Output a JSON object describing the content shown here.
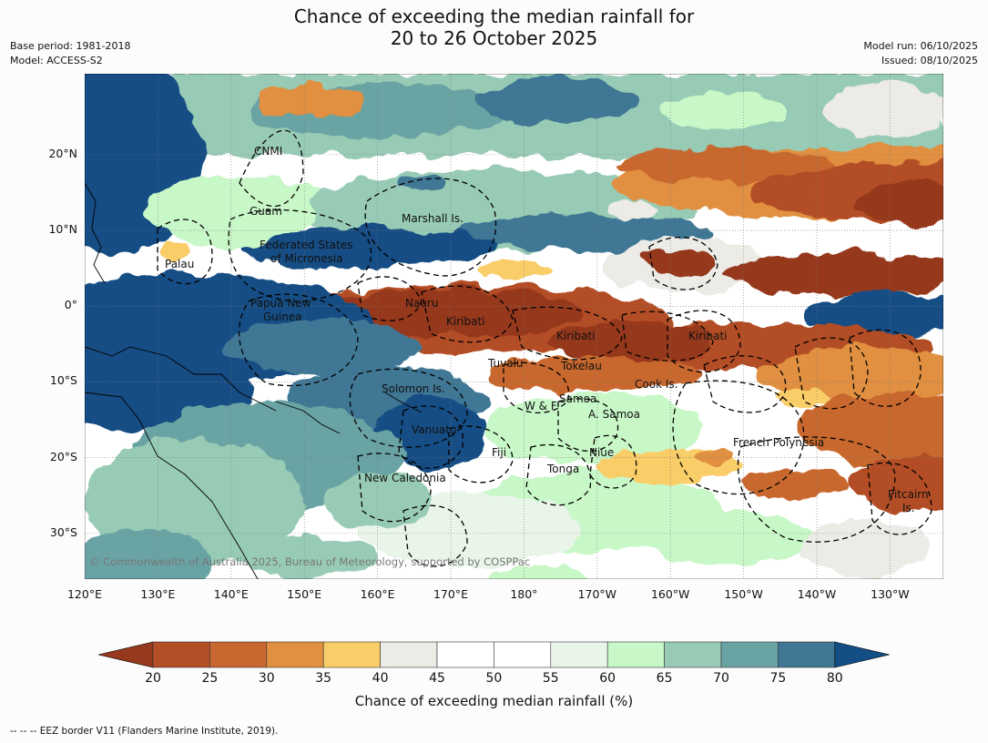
{
  "title": {
    "line1": "Chance of exceeding the median rainfall for",
    "line2": "20 to 26 October 2025"
  },
  "meta": {
    "base_period": "Base period: 1981-2018",
    "model": "Model: ACCESS-S2",
    "model_run": "Model run: 06/10/2025",
    "issued": "Issued: 08/10/2025"
  },
  "map": {
    "lon_labels": [
      "120°E",
      "130°E",
      "140°E",
      "150°E",
      "160°E",
      "170°E",
      "180°",
      "170°W",
      "160°W",
      "150°W",
      "140°W",
      "130°W"
    ],
    "lat_labels": [
      "20°N",
      "10°N",
      "0°",
      "10°S",
      "20°S",
      "30°S"
    ],
    "places": {
      "cnmi": "CNMI",
      "guam": "Guam",
      "marshall": "Marshall Is.",
      "fsm1": "Federated States",
      "fsm2": "of Micronesia",
      "palau": "Palau",
      "png1": "Papua New",
      "png2": "Guinea",
      "nauru": "Nauru",
      "kiribati_w": "Kiribati",
      "kiribati_c": "Kiribati",
      "kiribati_e": "Kiribati",
      "tuvalu": "Tuvalu",
      "tokelau": "Tokelau",
      "solomon": "Solomon Is.",
      "samoa": "Samoa",
      "wf": "W & F",
      "asamoa": "A. Samoa",
      "cook": "Cook Is.",
      "vanuatu": "Vanuatu",
      "fiji": "Fiji",
      "niue": "Niue",
      "tonga": "Tonga",
      "french_polynesia": "French Polynesia",
      "new_caledonia": "New Caledonia",
      "pitcairn1": "Pitcairn",
      "pitcairn2": "Is."
    },
    "copyright": "© Commonwealth of Australia 2025, Bureau of Meteorology, supported by COSPPac"
  },
  "colorbar": {
    "ticks": [
      "20",
      "25",
      "30",
      "35",
      "40",
      "45",
      "50",
      "55",
      "60",
      "65",
      "70",
      "75",
      "80"
    ],
    "colors": [
      "#b34e27",
      "#c8672f",
      "#e09040",
      "#f9cd68",
      "#ecebe6",
      "#ffffff",
      "#ffffff",
      "#e8f5e8",
      "#c8f7c8",
      "#98cbb5",
      "#6aa3a4",
      "#407795"
    ],
    "under_color": "#96391e",
    "over_color": "#134e84",
    "label": "Chance of exceeding median rainfall (%)"
  },
  "footer": "--  --  -- EEZ border V11 (Flanders Marine Institute, 2019)."
}
